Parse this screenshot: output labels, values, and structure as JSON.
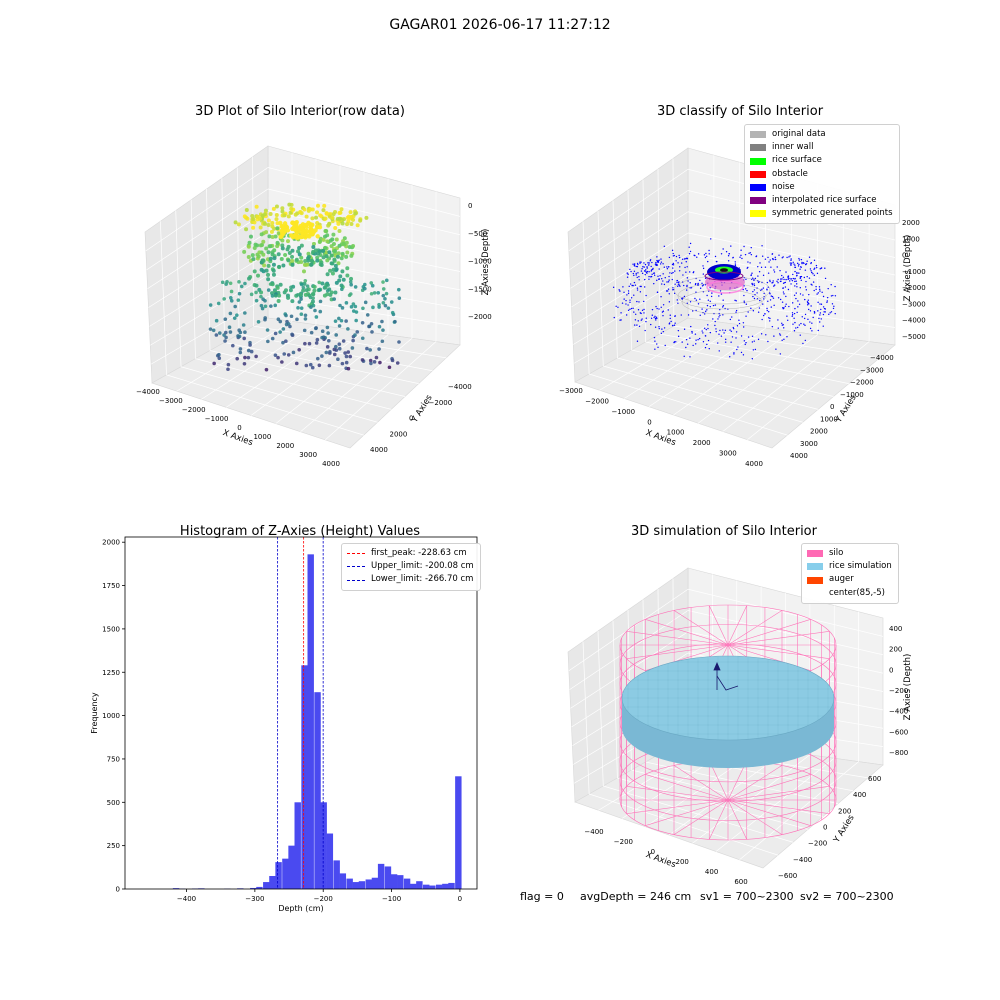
{
  "page": {
    "suptitle": "GAGAR01 2026-06-17 11:27:12"
  },
  "chart_data": [
    {
      "type": "scatter",
      "title": "3D Plot of Silo Interior(row data)",
      "xlabel": "X Axies",
      "ylabel": "Y Axies",
      "zlabel": "Z Axies (Depth)",
      "xticks": [
        "−4000",
        "−3000",
        "−2000",
        "−1000",
        "0",
        "1000",
        "2000",
        "3000",
        "4000"
      ],
      "yticks": [
        "−4000",
        "−2000",
        "0",
        "2000",
        "4000"
      ],
      "zticks": [
        "−2000",
        "−1500",
        "−1000",
        "−500",
        "0"
      ],
      "xlim": [
        -4000,
        4500
      ],
      "ylim": [
        -4500,
        4500
      ],
      "zlim": [
        -2400,
        0
      ],
      "colormap": "viridis by depth"
    },
    {
      "type": "scatter",
      "title": "3D classify of Silo Interior",
      "xlabel": "X Axies",
      "ylabel": "Y Axies",
      "zlabel": "Z Axies (Depth)",
      "xticks": [
        "−3000",
        "−2000",
        "−1000",
        "0",
        "1000",
        "2000",
        "3000",
        "4000"
      ],
      "yticks": [
        "−4000",
        "−3000",
        "−2000",
        "−1000",
        "0",
        "1000",
        "2000",
        "3000",
        "4000"
      ],
      "zticks": [
        "−5000",
        "−4000",
        "−3000",
        "−2000",
        "−1000",
        "0",
        "1000",
        "2000"
      ],
      "zticks_hidden_note": "",
      "legend": [
        {
          "label": "original data",
          "color": "#b3b3b3"
        },
        {
          "label": "inner wall",
          "color": "#808080"
        },
        {
          "label": "rice surface",
          "color": "#00ff00"
        },
        {
          "label": "obstacle",
          "color": "#ff0000"
        },
        {
          "label": "noise",
          "color": "#0000ff"
        },
        {
          "label": "interpolated rice surface",
          "color": "#800080"
        },
        {
          "label": "symmetric generated points",
          "color": "#ffff00"
        }
      ]
    },
    {
      "type": "bar",
      "title": "Histogram of Z-Axies (Height) Values",
      "xlabel": "Depth (cm)",
      "ylabel": "Frequency",
      "xlim": [
        -490,
        25
      ],
      "ylim": [
        0,
        2030
      ],
      "xticks": [
        -400,
        -300,
        -200,
        -100,
        0
      ],
      "xtick_labels": [
        "−400",
        "−300",
        "−200",
        "−100",
        "0"
      ],
      "yticks": [
        0,
        250,
        500,
        750,
        1000,
        1250,
        1500,
        1750,
        2000
      ],
      "bin_width": 9.4,
      "bins": [
        [
          -420,
          5
        ],
        [
          -411,
          2
        ],
        [
          -392,
          3
        ],
        [
          -383,
          4
        ],
        [
          -345,
          2
        ],
        [
          -326,
          4
        ],
        [
          -307,
          6
        ],
        [
          -298,
          12
        ],
        [
          -288,
          40
        ],
        [
          -279,
          75
        ],
        [
          -270,
          155
        ],
        [
          -260,
          175
        ],
        [
          -251,
          250
        ],
        [
          -242,
          500
        ],
        [
          -232,
          1290
        ],
        [
          -223,
          1930
        ],
        [
          -213,
          1135
        ],
        [
          -204,
          500
        ],
        [
          -195,
          320
        ],
        [
          -185,
          165
        ],
        [
          -176,
          90
        ],
        [
          -166,
          60
        ],
        [
          -157,
          40
        ],
        [
          -148,
          45
        ],
        [
          -138,
          55
        ],
        [
          -129,
          65
        ],
        [
          -120,
          145
        ],
        [
          -110,
          130
        ],
        [
          -101,
          85
        ],
        [
          -92,
          80
        ],
        [
          -82,
          60
        ],
        [
          -73,
          30
        ],
        [
          -64,
          45
        ],
        [
          -54,
          25
        ],
        [
          -45,
          20
        ],
        [
          -35,
          25
        ],
        [
          -26,
          30
        ],
        [
          -17,
          35
        ],
        [
          -7,
          650
        ]
      ],
      "bar_color": "#4a4af0",
      "vlines": [
        {
          "label": "first_peak: -228.63 cm",
          "x": -228.63,
          "color": "#ff0000"
        },
        {
          "label": "Upper_limit: -200.08 cm",
          "x": -200.08,
          "color": "#0000cc"
        },
        {
          "label": "Lower_limit: -266.70 cm",
          "x": -266.7,
          "color": "#0000cc"
        }
      ]
    },
    {
      "type": "surface",
      "title": "3D simulation of Silo Interior",
      "xlabel": "X Axies",
      "ylabel": "Y Axies",
      "zlabel": "Z Axies (Depth)",
      "xticks": [
        "−400",
        "−200",
        "0",
        "200",
        "400",
        "600"
      ],
      "yticks": [
        "−600",
        "−400",
        "−200",
        "0",
        "200",
        "400",
        "600"
      ],
      "zticks": [
        "−800",
        "−600",
        "−400",
        "−200",
        "0",
        "200",
        "400"
      ],
      "legend": [
        {
          "label": "silo",
          "color": "#ff69b4"
        },
        {
          "label": "rice simulation",
          "color": "#87ceeb"
        },
        {
          "label": "auger",
          "color": "#ff4500"
        },
        {
          "label": "center(85,-5)",
          "color": ""
        }
      ]
    }
  ],
  "status": {
    "flag": "flag = 0",
    "avg": "avgDepth = 246 cm",
    "sv1": "sv1 = 700~2300",
    "sv2": "sv2 = 700~2300"
  }
}
